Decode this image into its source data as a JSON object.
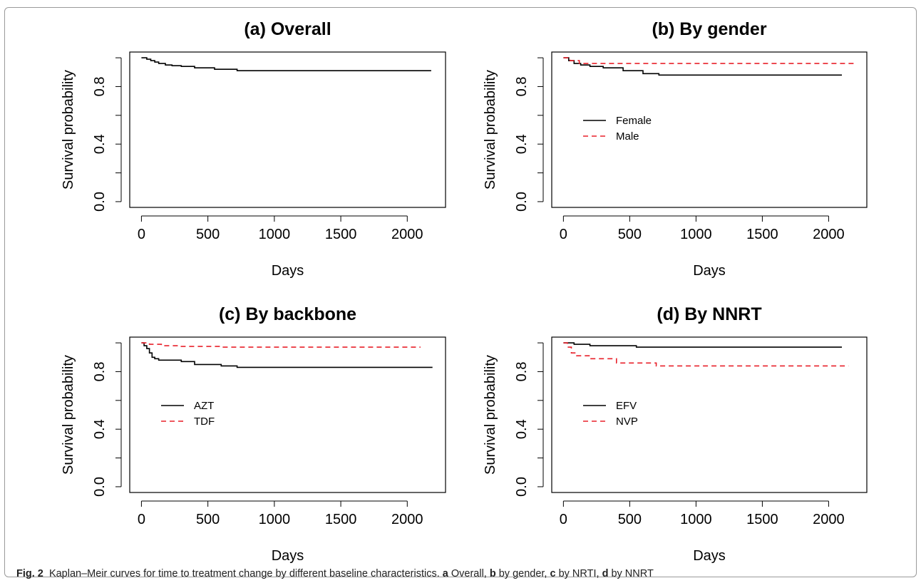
{
  "caption": {
    "label": "Fig. 2",
    "text": "Kaplan–Meir curves for time to treatment change by different baseline characteristics.",
    "parts": [
      {
        "letter": "a",
        "text": " Overall, "
      },
      {
        "letter": "b",
        "text": " by gender, "
      },
      {
        "letter": "c",
        "text": " by NRTI, "
      },
      {
        "letter": "d",
        "text": " by NNRT"
      }
    ]
  },
  "colors": {
    "black": "#000000",
    "red": "#e8202a"
  },
  "chart_data": [
    {
      "type": "line",
      "step": true,
      "title": "(a) Overall",
      "xlabel": "Days",
      "ylabel": "Survival probability",
      "xlim": [
        0,
        2200
      ],
      "ylim": [
        0,
        1
      ],
      "xticks": [
        "0",
        "500",
        "1000",
        "1500",
        "2000"
      ],
      "yticks": [
        "0.0",
        "0.4",
        "0.8"
      ],
      "legend": null,
      "series": [
        {
          "color": "#000000",
          "dash": "solid",
          "x": [
            0,
            40,
            70,
            100,
            130,
            180,
            230,
            300,
            400,
            550,
            720,
            2180
          ],
          "y": [
            1.0,
            0.99,
            0.98,
            0.97,
            0.96,
            0.95,
            0.945,
            0.94,
            0.93,
            0.92,
            0.91,
            0.91
          ]
        }
      ]
    },
    {
      "type": "line",
      "step": true,
      "title": "(b) By gender",
      "xlabel": "Days",
      "ylabel": "Survival probability",
      "xlim": [
        0,
        2200
      ],
      "ylim": [
        0,
        1
      ],
      "xticks": [
        "0",
        "500",
        "1000",
        "1500",
        "2000"
      ],
      "yticks": [
        "0.0",
        "0.4",
        "0.8"
      ],
      "legend": {
        "placement": "middle-left"
      },
      "series": [
        {
          "name": "Female",
          "color": "#000000",
          "dash": "solid",
          "x": [
            0,
            40,
            80,
            130,
            200,
            300,
            450,
            600,
            720,
            2100
          ],
          "y": [
            1.0,
            0.98,
            0.96,
            0.95,
            0.94,
            0.93,
            0.91,
            0.89,
            0.88,
            0.88
          ]
        },
        {
          "name": "Male",
          "color": "#e8202a",
          "dash": "dashed",
          "x": [
            0,
            50,
            120,
            2200
          ],
          "y": [
            1.0,
            0.98,
            0.96,
            0.96
          ]
        }
      ]
    },
    {
      "type": "line",
      "step": true,
      "title": "(c) By backbone",
      "xlabel": "Days",
      "ylabel": "Survival probability",
      "xlim": [
        0,
        2200
      ],
      "ylim": [
        0,
        1
      ],
      "xticks": [
        "0",
        "500",
        "1000",
        "1500",
        "2000"
      ],
      "yticks": [
        "0.0",
        "0.4",
        "0.8"
      ],
      "legend": {
        "placement": "middle-left"
      },
      "series": [
        {
          "name": "AZT",
          "color": "#000000",
          "dash": "solid",
          "x": [
            0,
            20,
            40,
            60,
            80,
            100,
            130,
            300,
            400,
            600,
            720,
            2190
          ],
          "y": [
            1.0,
            0.98,
            0.96,
            0.93,
            0.9,
            0.89,
            0.88,
            0.87,
            0.85,
            0.84,
            0.83,
            0.83
          ]
        },
        {
          "name": "TDF",
          "color": "#e8202a",
          "dash": "dashed",
          "x": [
            0,
            60,
            150,
            300,
            600,
            2100
          ],
          "y": [
            1.0,
            0.99,
            0.98,
            0.975,
            0.97,
            0.97
          ]
        }
      ]
    },
    {
      "type": "line",
      "step": true,
      "title": "(d) By NNRT",
      "xlabel": "Days",
      "ylabel": "Survival probability",
      "xlim": [
        0,
        2200
      ],
      "ylim": [
        0,
        1
      ],
      "xticks": [
        "0",
        "500",
        "1000",
        "1500",
        "2000"
      ],
      "yticks": [
        "0.0",
        "0.4",
        "0.8"
      ],
      "legend": {
        "placement": "middle-left"
      },
      "series": [
        {
          "name": "EFV",
          "color": "#000000",
          "dash": "solid",
          "x": [
            0,
            80,
            200,
            550,
            2100
          ],
          "y": [
            1.0,
            0.99,
            0.98,
            0.97,
            0.97
          ]
        },
        {
          "name": "NVP",
          "color": "#e8202a",
          "dash": "dashed",
          "x": [
            0,
            30,
            60,
            100,
            200,
            400,
            700,
            2150
          ],
          "y": [
            1.0,
            0.97,
            0.93,
            0.91,
            0.89,
            0.86,
            0.84,
            0.84
          ]
        }
      ]
    }
  ]
}
